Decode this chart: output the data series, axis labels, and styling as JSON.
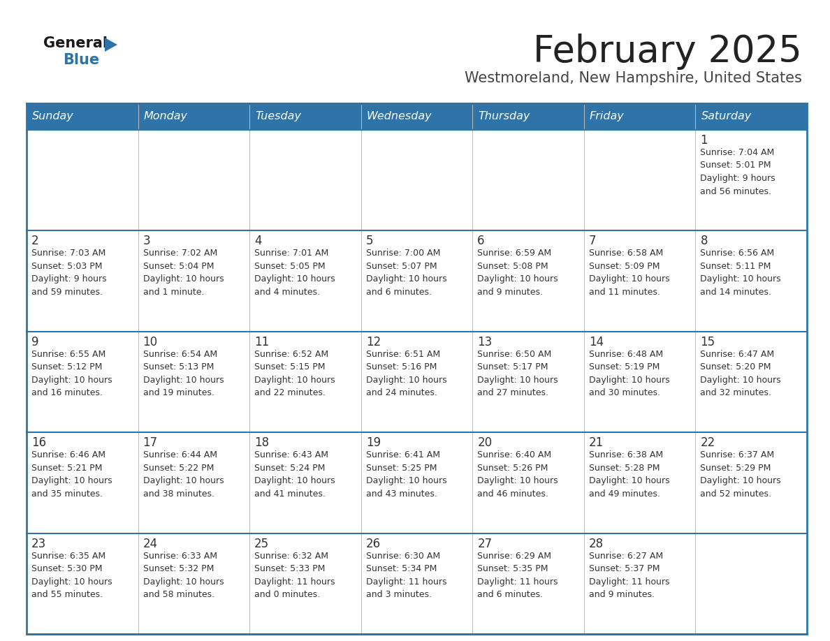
{
  "title": "February 2025",
  "subtitle": "Westmoreland, New Hampshire, United States",
  "days_of_week": [
    "Sunday",
    "Monday",
    "Tuesday",
    "Wednesday",
    "Thursday",
    "Friday",
    "Saturday"
  ],
  "header_bg": "#2E74A8",
  "header_text": "#FFFFFF",
  "cell_bg": "#FFFFFF",
  "row_border_color": "#2E74A8",
  "col_border_color": "#AAAAAA",
  "outer_border_color": "#2E74A8",
  "day_num_color": "#333333",
  "cell_text_color": "#333333",
  "title_color": "#222222",
  "subtitle_color": "#444444",
  "logo_black": "#1a1a1a",
  "logo_blue": "#2E74A8",
  "calendar_data": [
    [
      {
        "day": 0
      },
      {
        "day": 0
      },
      {
        "day": 0
      },
      {
        "day": 0
      },
      {
        "day": 0
      },
      {
        "day": 0
      },
      {
        "day": 1,
        "sunrise": "7:04 AM",
        "sunset": "5:01 PM",
        "daylight": "9 hours and 56 minutes."
      }
    ],
    [
      {
        "day": 2,
        "sunrise": "7:03 AM",
        "sunset": "5:03 PM",
        "daylight": "9 hours and 59 minutes."
      },
      {
        "day": 3,
        "sunrise": "7:02 AM",
        "sunset": "5:04 PM",
        "daylight": "10 hours and 1 minute."
      },
      {
        "day": 4,
        "sunrise": "7:01 AM",
        "sunset": "5:05 PM",
        "daylight": "10 hours and 4 minutes."
      },
      {
        "day": 5,
        "sunrise": "7:00 AM",
        "sunset": "5:07 PM",
        "daylight": "10 hours and 6 minutes."
      },
      {
        "day": 6,
        "sunrise": "6:59 AM",
        "sunset": "5:08 PM",
        "daylight": "10 hours and 9 minutes."
      },
      {
        "day": 7,
        "sunrise": "6:58 AM",
        "sunset": "5:09 PM",
        "daylight": "10 hours and 11 minutes."
      },
      {
        "day": 8,
        "sunrise": "6:56 AM",
        "sunset": "5:11 PM",
        "daylight": "10 hours and 14 minutes."
      }
    ],
    [
      {
        "day": 9,
        "sunrise": "6:55 AM",
        "sunset": "5:12 PM",
        "daylight": "10 hours and 16 minutes."
      },
      {
        "day": 10,
        "sunrise": "6:54 AM",
        "sunset": "5:13 PM",
        "daylight": "10 hours and 19 minutes."
      },
      {
        "day": 11,
        "sunrise": "6:52 AM",
        "sunset": "5:15 PM",
        "daylight": "10 hours and 22 minutes."
      },
      {
        "day": 12,
        "sunrise": "6:51 AM",
        "sunset": "5:16 PM",
        "daylight": "10 hours and 24 minutes."
      },
      {
        "day": 13,
        "sunrise": "6:50 AM",
        "sunset": "5:17 PM",
        "daylight": "10 hours and 27 minutes."
      },
      {
        "day": 14,
        "sunrise": "6:48 AM",
        "sunset": "5:19 PM",
        "daylight": "10 hours and 30 minutes."
      },
      {
        "day": 15,
        "sunrise": "6:47 AM",
        "sunset": "5:20 PM",
        "daylight": "10 hours and 32 minutes."
      }
    ],
    [
      {
        "day": 16,
        "sunrise": "6:46 AM",
        "sunset": "5:21 PM",
        "daylight": "10 hours and 35 minutes."
      },
      {
        "day": 17,
        "sunrise": "6:44 AM",
        "sunset": "5:22 PM",
        "daylight": "10 hours and 38 minutes."
      },
      {
        "day": 18,
        "sunrise": "6:43 AM",
        "sunset": "5:24 PM",
        "daylight": "10 hours and 41 minutes."
      },
      {
        "day": 19,
        "sunrise": "6:41 AM",
        "sunset": "5:25 PM",
        "daylight": "10 hours and 43 minutes."
      },
      {
        "day": 20,
        "sunrise": "6:40 AM",
        "sunset": "5:26 PM",
        "daylight": "10 hours and 46 minutes."
      },
      {
        "day": 21,
        "sunrise": "6:38 AM",
        "sunset": "5:28 PM",
        "daylight": "10 hours and 49 minutes."
      },
      {
        "day": 22,
        "sunrise": "6:37 AM",
        "sunset": "5:29 PM",
        "daylight": "10 hours and 52 minutes."
      }
    ],
    [
      {
        "day": 23,
        "sunrise": "6:35 AM",
        "sunset": "5:30 PM",
        "daylight": "10 hours and 55 minutes."
      },
      {
        "day": 24,
        "sunrise": "6:33 AM",
        "sunset": "5:32 PM",
        "daylight": "10 hours and 58 minutes."
      },
      {
        "day": 25,
        "sunrise": "6:32 AM",
        "sunset": "5:33 PM",
        "daylight": "11 hours and 0 minutes."
      },
      {
        "day": 26,
        "sunrise": "6:30 AM",
        "sunset": "5:34 PM",
        "daylight": "11 hours and 3 minutes."
      },
      {
        "day": 27,
        "sunrise": "6:29 AM",
        "sunset": "5:35 PM",
        "daylight": "11 hours and 6 minutes."
      },
      {
        "day": 28,
        "sunrise": "6:27 AM",
        "sunset": "5:37 PM",
        "daylight": "11 hours and 9 minutes."
      },
      {
        "day": 0
      }
    ]
  ]
}
